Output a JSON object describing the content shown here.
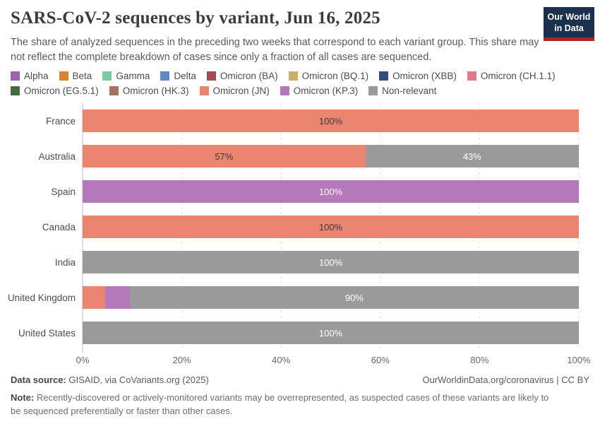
{
  "header": {
    "title": "SARS-CoV-2 sequences by variant, Jun 16, 2025",
    "subtitle": "The share of analyzed sequences in the preceding two weeks that correspond to each variant group. This share may not reflect the complete breakdown of cases since only a fraction of all cases are sequenced.",
    "logo": {
      "line1": "Our World",
      "line2": "in Data",
      "bg_color": "#1B304F",
      "accent_color": "#A82820"
    }
  },
  "chart_data": {
    "type": "bar",
    "orientation": "horizontal",
    "stacked": true,
    "unit": "%",
    "xlim": [
      0,
      100
    ],
    "x_ticks": [
      "0%",
      "20%",
      "40%",
      "60%",
      "80%",
      "100%"
    ],
    "grid": true,
    "legend_position": "top",
    "variants": [
      {
        "name": "Alpha",
        "color": "#9D64AC"
      },
      {
        "name": "Beta",
        "color": "#D9822F"
      },
      {
        "name": "Gamma",
        "color": "#7DC9A5"
      },
      {
        "name": "Delta",
        "color": "#5C8AC6"
      },
      {
        "name": "Omicron (BA)",
        "color": "#A34B53"
      },
      {
        "name": "Omicron (BQ.1)",
        "color": "#CBB06D"
      },
      {
        "name": "Omicron (XBB)",
        "color": "#334F7D"
      },
      {
        "name": "Omicron (CH.1.1)",
        "color": "#DC7C8E"
      },
      {
        "name": "Omicron (EG.5.1)",
        "color": "#456B3E"
      },
      {
        "name": "Omicron (HK.3)",
        "color": "#A7735C"
      },
      {
        "name": "Omicron (JN)",
        "color": "#EA8570"
      },
      {
        "name": "Omicron (KP.3)",
        "color": "#B478BB"
      },
      {
        "name": "Non-relevant",
        "color": "#9A9A9A"
      }
    ],
    "categories": [
      "France",
      "Australia",
      "Spain",
      "Canada",
      "India",
      "United Kingdom",
      "United States"
    ],
    "rows": [
      {
        "country": "France",
        "segments": [
          {
            "variant": "Omicron (JN)",
            "value": 100,
            "label": "100%",
            "label_tone": "dark"
          }
        ]
      },
      {
        "country": "Australia",
        "segments": [
          {
            "variant": "Omicron (JN)",
            "value": 57,
            "label": "57%",
            "label_tone": "dark"
          },
          {
            "variant": "Non-relevant",
            "value": 43,
            "label": "43%",
            "label_tone": "light"
          }
        ]
      },
      {
        "country": "Spain",
        "segments": [
          {
            "variant": "Omicron (KP.3)",
            "value": 100,
            "label": "100%",
            "label_tone": "light"
          }
        ]
      },
      {
        "country": "Canada",
        "segments": [
          {
            "variant": "Omicron (JN)",
            "value": 100,
            "label": "100%",
            "label_tone": "dark"
          }
        ]
      },
      {
        "country": "India",
        "segments": [
          {
            "variant": "Non-relevant",
            "value": 100,
            "label": "100%",
            "label_tone": "light"
          }
        ]
      },
      {
        "country": "United Kingdom",
        "segments": [
          {
            "variant": "Omicron (JN)",
            "value": 4.5,
            "label": "",
            "label_tone": "dark"
          },
          {
            "variant": "Omicron (KP.3)",
            "value": 5,
            "label": "",
            "label_tone": "light"
          },
          {
            "variant": "Non-relevant",
            "value": 90.5,
            "label": "90%",
            "label_tone": "light"
          }
        ]
      },
      {
        "country": "United States",
        "segments": [
          {
            "variant": "Non-relevant",
            "value": 100,
            "label": "100%",
            "label_tone": "light"
          }
        ]
      }
    ]
  },
  "footer": {
    "source_label": "Data source:",
    "source_value": " GISAID, via CoVariants.org (2025)",
    "link": "OurWorldinData.org/coronavirus | CC BY",
    "note_label": "Note:",
    "note_value": " Recently-discovered or actively-monitored variants may be overrepresented, as suspected cases of these variants are likely to be sequenced preferentially or faster than other cases."
  }
}
